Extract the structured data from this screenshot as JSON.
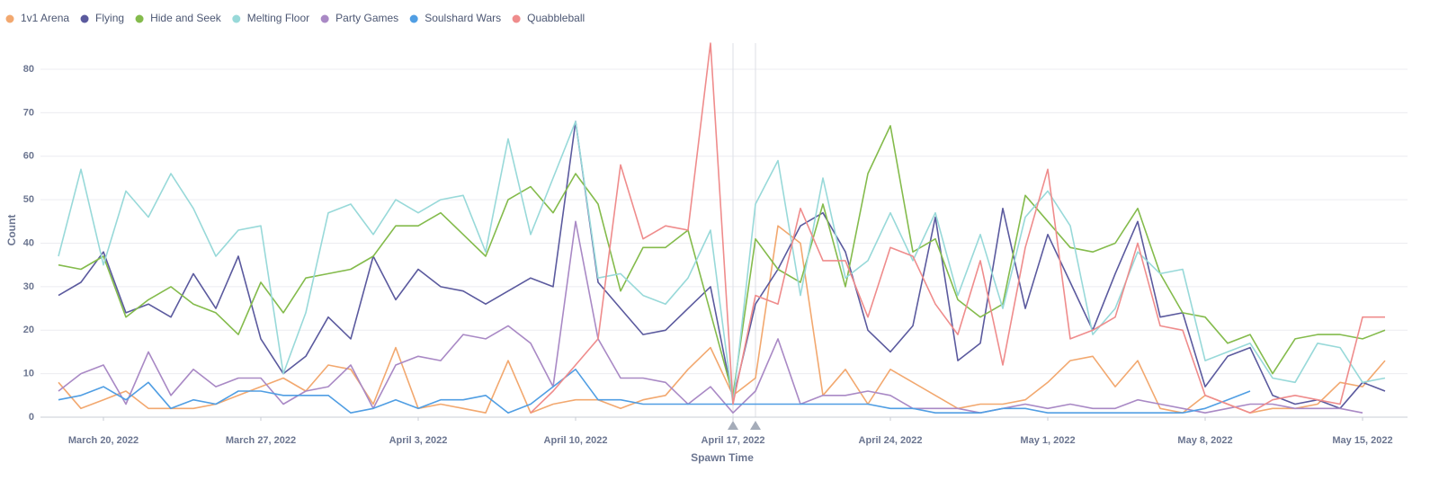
{
  "chart_data": {
    "type": "line",
    "x_label": "Spawn Time",
    "y_label": "Count",
    "x": [
      "2022-03-18",
      "2022-03-19",
      "2022-03-20",
      "2022-03-21",
      "2022-03-22",
      "2022-03-23",
      "2022-03-24",
      "2022-03-25",
      "2022-03-26",
      "2022-03-27",
      "2022-03-28",
      "2022-03-29",
      "2022-03-30",
      "2022-03-31",
      "2022-04-01",
      "2022-04-02",
      "2022-04-03",
      "2022-04-04",
      "2022-04-05",
      "2022-04-06",
      "2022-04-07",
      "2022-04-08",
      "2022-04-09",
      "2022-04-10",
      "2022-04-11",
      "2022-04-12",
      "2022-04-13",
      "2022-04-14",
      "2022-04-15",
      "2022-04-16",
      "2022-04-17",
      "2022-04-18",
      "2022-04-19",
      "2022-04-20",
      "2022-04-21",
      "2022-04-22",
      "2022-04-23",
      "2022-04-24",
      "2022-04-25",
      "2022-04-26",
      "2022-04-27",
      "2022-04-28",
      "2022-04-29",
      "2022-04-30",
      "2022-05-01",
      "2022-05-02",
      "2022-05-03",
      "2022-05-04",
      "2022-05-05",
      "2022-05-06",
      "2022-05-07",
      "2022-05-08",
      "2022-05-09",
      "2022-05-10",
      "2022-05-11",
      "2022-05-12",
      "2022-05-13",
      "2022-05-14",
      "2022-05-15",
      "2022-05-16"
    ],
    "xlim": [
      "2022-03-18",
      "2022-05-16"
    ],
    "xticks": [
      {
        "value": "2022-03-20",
        "label": "March 20, 2022"
      },
      {
        "value": "2022-03-27",
        "label": "March 27, 2022"
      },
      {
        "value": "2022-04-03",
        "label": "April 3, 2022"
      },
      {
        "value": "2022-04-10",
        "label": "April 10, 2022"
      },
      {
        "value": "2022-04-17",
        "label": "April 17, 2022"
      },
      {
        "value": "2022-04-24",
        "label": "April 24, 2022"
      },
      {
        "value": "2022-05-01",
        "label": "May 1, 2022"
      },
      {
        "value": "2022-05-08",
        "label": "May 8, 2022"
      },
      {
        "value": "2022-05-15",
        "label": "May 15, 2022"
      }
    ],
    "ylim": [
      0,
      86
    ],
    "yticks": [
      0,
      10,
      20,
      30,
      40,
      50,
      60,
      70,
      80
    ],
    "grid": true,
    "legend": "top-left",
    "series": [
      {
        "name": "1v1 Arena",
        "color": "#f2a86f",
        "values": [
          8,
          2,
          4,
          6,
          2,
          2,
          2,
          3,
          5,
          7,
          9,
          6,
          12,
          11,
          3,
          16,
          2,
          3,
          2,
          1,
          13,
          1,
          3,
          4,
          4,
          2,
          4,
          5,
          11,
          16,
          5,
          9,
          44,
          40,
          5,
          11,
          3,
          11,
          8,
          5,
          2,
          3,
          3,
          4,
          8,
          13,
          14,
          7,
          13,
          2,
          1,
          5,
          3,
          1,
          2,
          2,
          3,
          8,
          7,
          13
        ]
      },
      {
        "name": "Flying",
        "color": "#5b5a9e",
        "values": [
          28,
          31,
          38,
          24,
          26,
          23,
          33,
          25,
          37,
          18,
          10,
          14,
          23,
          18,
          37,
          27,
          34,
          30,
          29,
          26,
          29,
          32,
          30,
          68,
          31,
          25,
          19,
          20,
          25,
          30,
          4,
          26,
          34,
          44,
          47,
          38,
          20,
          15,
          21,
          46,
          13,
          17,
          48,
          25,
          42,
          31,
          20,
          33,
          45,
          23,
          24,
          7,
          14,
          16,
          5,
          3,
          4,
          2,
          8,
          6
        ]
      },
      {
        "name": "Hide and Seek",
        "color": "#84bb4c",
        "values": [
          35,
          34,
          37,
          23,
          27,
          30,
          26,
          24,
          19,
          31,
          24,
          32,
          33,
          34,
          37,
          44,
          44,
          47,
          42,
          37,
          50,
          53,
          47,
          56,
          49,
          29,
          39,
          39,
          43,
          24,
          5,
          41,
          34,
          31,
          49,
          30,
          56,
          67,
          38,
          41,
          27,
          23,
          26,
          51,
          45,
          39,
          38,
          40,
          48,
          33,
          24,
          23,
          17,
          19,
          10,
          18,
          19,
          19,
          18,
          20
        ]
      },
      {
        "name": "Melting Floor",
        "color": "#98d9d9",
        "values": [
          37,
          57,
          35,
          52,
          46,
          56,
          48,
          37,
          43,
          44,
          10,
          24,
          47,
          49,
          42,
          50,
          47,
          50,
          51,
          38,
          64,
          42,
          55,
          68,
          32,
          33,
          28,
          26,
          32,
          43,
          3,
          49,
          59,
          28,
          55,
          32,
          36,
          47,
          36,
          47,
          28,
          42,
          25,
          46,
          52,
          44,
          19,
          25,
          38,
          33,
          34,
          13,
          15,
          17,
          9,
          8,
          17,
          16,
          8,
          9
        ]
      },
      {
        "name": "Party Games",
        "color": "#a989c5",
        "values": [
          6,
          10,
          12,
          3,
          15,
          5,
          11,
          7,
          9,
          9,
          3,
          6,
          7,
          12,
          2,
          12,
          14,
          13,
          19,
          18,
          21,
          17,
          7,
          45,
          18,
          9,
          9,
          8,
          3,
          7,
          1,
          6,
          18,
          3,
          5,
          5,
          6,
          5,
          2,
          2,
          2,
          1,
          2,
          3,
          2,
          3,
          2,
          2,
          4,
          3,
          2,
          1,
          2,
          3,
          3,
          2,
          2,
          2,
          1,
          null
        ]
      },
      {
        "name": "Soulshard Wars",
        "color": "#509ee3",
        "values": [
          4,
          5,
          7,
          4,
          8,
          2,
          4,
          3,
          6,
          6,
          5,
          5,
          5,
          1,
          2,
          4,
          2,
          4,
          4,
          5,
          1,
          3,
          7,
          11,
          4,
          4,
          3,
          3,
          3,
          3,
          3,
          3,
          3,
          3,
          3,
          3,
          3,
          2,
          2,
          1,
          1,
          1,
          2,
          2,
          1,
          1,
          1,
          1,
          1,
          1,
          1,
          2,
          4,
          6,
          null,
          null,
          null,
          null,
          null,
          null
        ]
      },
      {
        "name": "Quabbleball",
        "color": "#ef8c8c",
        "values": [
          null,
          null,
          null,
          null,
          null,
          null,
          null,
          null,
          null,
          null,
          null,
          null,
          null,
          null,
          null,
          null,
          null,
          null,
          null,
          null,
          null,
          1,
          6,
          12,
          18,
          58,
          41,
          44,
          43,
          86,
          3,
          28,
          26,
          48,
          36,
          36,
          23,
          39,
          37,
          26,
          19,
          36,
          12,
          39,
          57,
          18,
          20,
          23,
          40,
          21,
          20,
          5,
          3,
          1,
          4,
          5,
          4,
          3,
          23,
          23
        ]
      }
    ]
  }
}
